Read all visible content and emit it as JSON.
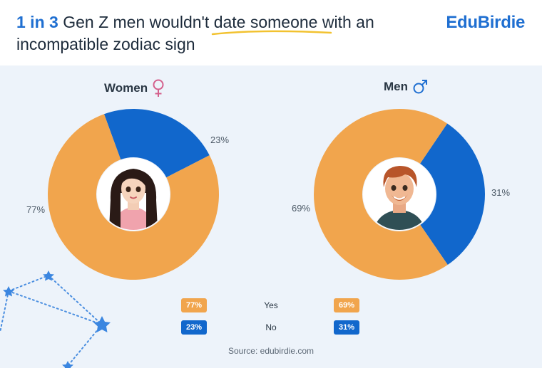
{
  "header": {
    "title_highlight": "1 in 3",
    "title_part1": "Gen Z men wouldn't",
    "title_underlined": "date someone",
    "title_part2": "with an",
    "title_line2": "incompatible zodiac sign",
    "logo": "EduBirdie"
  },
  "colors": {
    "yes": "#f1a54d",
    "no": "#1167cc",
    "accent": "#1f6fd1",
    "underline": "#f2c230"
  },
  "chart_data": [
    {
      "type": "pie",
      "title": "Women",
      "categories": [
        "Yes",
        "No"
      ],
      "values": [
        77,
        23
      ],
      "labels": [
        "77%",
        "23%"
      ],
      "icon": "female-symbol-icon"
    },
    {
      "type": "pie",
      "title": "Men",
      "categories": [
        "Yes",
        "No"
      ],
      "values": [
        69,
        31
      ],
      "labels": [
        "69%",
        "31%"
      ],
      "icon": "male-symbol-icon"
    }
  ],
  "legend": {
    "yes_label": "Yes",
    "no_label": "No",
    "women_yes": "77%",
    "women_no": "23%",
    "men_yes": "69%",
    "men_no": "31%"
  },
  "source": "Source: edubirdie.com"
}
